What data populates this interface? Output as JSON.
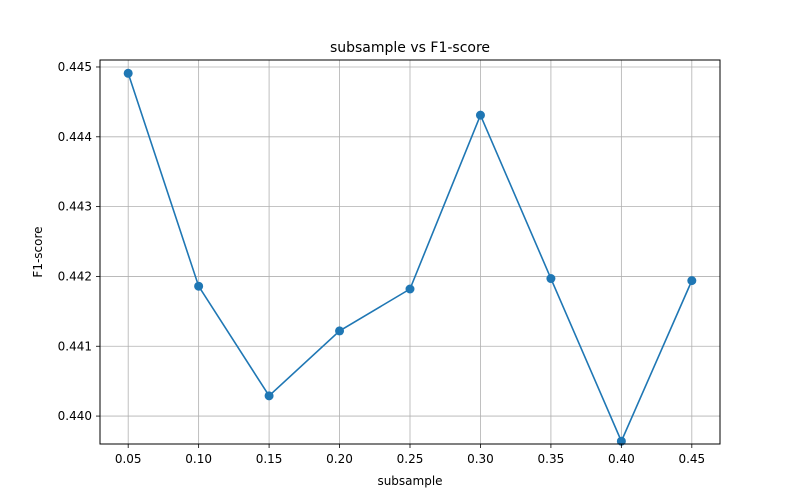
{
  "chart_data": {
    "type": "line",
    "title": "subsample vs F1-score",
    "xlabel": "subsample",
    "ylabel": "F1-score",
    "x": [
      0.05,
      0.1,
      0.15,
      0.2,
      0.25,
      0.3,
      0.35,
      0.4,
      0.45
    ],
    "x_tick_labels": [
      "0.05",
      "0.10",
      "0.15",
      "0.20",
      "0.25",
      "0.30",
      "0.35",
      "0.40",
      "0.45"
    ],
    "y_ticks": [
      0.44,
      0.441,
      0.442,
      0.443,
      0.444,
      0.445
    ],
    "y_tick_labels": [
      "0.440",
      "0.441",
      "0.442",
      "0.443",
      "0.444",
      "0.445"
    ],
    "series": [
      {
        "values": [
          0.44491,
          0.44186,
          0.44029,
          0.44122,
          0.44182,
          0.44431,
          0.44197,
          0.43964,
          0.44194
        ],
        "color": "#1f77b4",
        "marker": "circle"
      }
    ],
    "xlim": [
      0.03,
      0.47
    ],
    "ylim": [
      0.4396,
      0.4451
    ],
    "grid": true,
    "legend": false
  }
}
